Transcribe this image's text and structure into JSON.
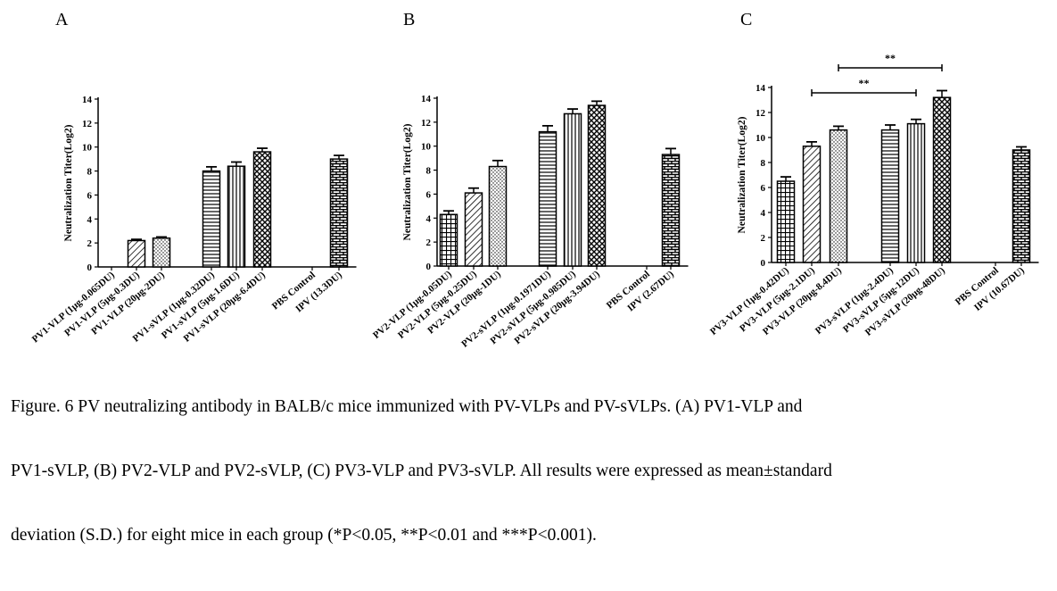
{
  "chart_data": [
    {
      "type": "bar",
      "panel_label": "A",
      "ylabel": "Neutralization Titer(Log2)",
      "ylim": [
        0,
        14
      ],
      "yticks": [
        0,
        2,
        4,
        6,
        8,
        10,
        12,
        14
      ],
      "categories": [
        "PV1-VLP (1μg-0.065DU)",
        "PV1-VLP (5μg-0.3DU)",
        "PV1-VLP (20μg-2DU)",
        "PV1-sVLP (1μg-0.32DU)",
        "PV1-sVLP (5μg-1.6DU)",
        "PV1-sVLP (20μg-6.4DU)",
        "PBS Control",
        "IPV (13.3DU)"
      ],
      "values": [
        0,
        2.2,
        2.4,
        8.0,
        8.4,
        9.6,
        0,
        9.0
      ],
      "errors": [
        0,
        0.1,
        0.1,
        0.35,
        0.35,
        0.3,
        0,
        0.3
      ],
      "patterns": [
        "none",
        "diag",
        "dots",
        "hstripe",
        "vstripe",
        "cross",
        "none",
        "brick"
      ],
      "significance": []
    },
    {
      "type": "bar",
      "panel_label": "B",
      "ylabel": "Neutralization Titer(Log2)",
      "ylim": [
        0,
        14
      ],
      "yticks": [
        0,
        2,
        4,
        6,
        8,
        10,
        12,
        14
      ],
      "categories": [
        "PV2-VLP (1μg-0.05DU)",
        "PV2-VLP (5μg-0.25DU)",
        "PV2-VLP (20μg-1DU)",
        "PV2-sVLP (1μg-0.1971DU)",
        "PV2-sVLP (5μg-0.985DU)",
        "PV2-sVLP (20μg-3.94DU)",
        "PBS Control",
        "IPV (2.67DU)"
      ],
      "values": [
        4.3,
        6.1,
        8.3,
        11.2,
        12.7,
        13.4,
        0,
        9.3
      ],
      "errors": [
        0.3,
        0.4,
        0.5,
        0.5,
        0.4,
        0.35,
        0,
        0.5
      ],
      "patterns": [
        "grid",
        "diag",
        "dots",
        "hstripe",
        "vstripe",
        "cross",
        "none",
        "brick"
      ],
      "significance": []
    },
    {
      "type": "bar",
      "panel_label": "C",
      "ylabel": "Neutralization Titer(Log2)",
      "ylim": [
        0,
        14
      ],
      "yticks": [
        0,
        2,
        4,
        6,
        8,
        10,
        12,
        14
      ],
      "categories": [
        "PV3-VLP (1μg-0.42DU)",
        "PV3-VLP (5μg-2.1DU)",
        "PV3-VLP (20μg-8.4DU)",
        "PV3-sVLP (1μg-2.4DU)",
        "PV3-sVLP (5μg-12DU)",
        "PV3-sVLP (20μg-48DU)",
        "PBS Control",
        "IPV (10.67DU)"
      ],
      "values": [
        6.5,
        9.3,
        10.6,
        10.6,
        11.1,
        13.2,
        0,
        9.0
      ],
      "errors": [
        0.35,
        0.35,
        0.3,
        0.4,
        0.35,
        0.55,
        0,
        0.25
      ],
      "patterns": [
        "grid",
        "diag",
        "dots",
        "hstripe",
        "vstripe",
        "cross",
        "none",
        "brick"
      ],
      "significance": [
        {
          "from": 1,
          "to": 4,
          "label": "**"
        },
        {
          "from": 2,
          "to": 5,
          "label": "**"
        }
      ]
    }
  ],
  "caption": {
    "line1": "Figure. 6 PV neutralizing antibody in BALB/c mice immunized with PV-VLPs and PV-sVLPs. (A) PV1-VLP and",
    "line2": "PV1-sVLP, (B) PV2-VLP and PV2-sVLP, (C) PV3-VLP and PV3-sVLP. All results were expressed as mean±standard",
    "line3": "deviation (S.D.) for eight mice in each group (*P<0.05, **P<0.01 and ***P<0.001)."
  }
}
